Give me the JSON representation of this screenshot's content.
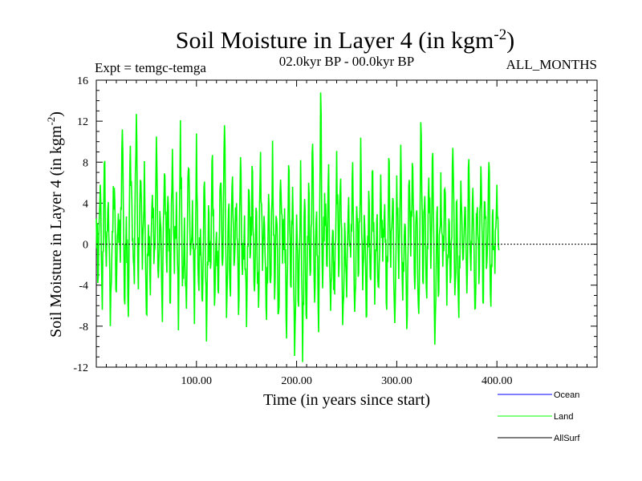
{
  "chart_data": {
    "type": "line",
    "title": "Soil Moisture in Layer 4 (in kgm",
    "title_superscript": "-2",
    "title_suffix": ")",
    "subtitle_left": "Expt = temgc-temga",
    "subtitle_center": "02.0kyr BP - 00.0kyr BP",
    "subtitle_right": "ALL_MONTHS",
    "xlabel": "Time (in years since start)",
    "ylabel": "Soil Moisture in Layer 4 (in kgm",
    "ylabel_superscript": "-2",
    "ylabel_suffix": ")",
    "xlim": [
      0,
      500
    ],
    "ylim": [
      -12,
      16
    ],
    "xticks": [
      100,
      200,
      300,
      400
    ],
    "xtick_labels": [
      "100.00",
      "200.00",
      "300.00",
      "400.00"
    ],
    "yticks": [
      -12,
      -8,
      -4,
      0,
      4,
      8,
      12,
      16
    ],
    "ytick_labels": [
      "-12",
      "-8",
      "-4",
      "0",
      "4",
      "8",
      "12",
      "16"
    ],
    "reference_line": 0,
    "series": [
      {
        "name": "Land",
        "color": "#00ff00",
        "x_start": 0,
        "x_step": 2,
        "values": [
          2.5,
          -3.1,
          5.8,
          -6.4,
          7.9,
          -2.2,
          4.1,
          -8.0,
          1.3,
          5.5,
          -4.7,
          3.0,
          -1.8,
          11.2,
          -5.3,
          2.7,
          -7.1,
          9.6,
          0.4,
          -3.9,
          12.7,
          -4.4,
          6.2,
          -2.5,
          8.1,
          -6.8,
          1.9,
          -5.0,
          4.8,
          -0.7,
          10.5,
          -3.3,
          2.2,
          -7.6,
          6.9,
          -1.4,
          3.6,
          -5.8,
          9.3,
          -2.9,
          5.1,
          -8.4,
          12.1,
          -4.1,
          2.6,
          -6.3,
          7.4,
          -1.1,
          4.3,
          -7.8,
          10.8,
          -3.7,
          1.5,
          -5.6,
          6.1,
          -9.5,
          3.8,
          -2.4,
          8.7,
          -6.0,
          1.2,
          -4.8,
          5.9,
          -2.1,
          11.6,
          -7.2,
          3.4,
          -5.1,
          6.6,
          -1.6,
          4.0,
          -6.9,
          8.5,
          -3.0,
          2.8,
          -8.1,
          5.3,
          -0.9,
          7.1,
          -4.6,
          3.1,
          -6.2,
          9.0,
          -2.6,
          1.7,
          -7.4,
          4.9,
          -3.8,
          10.1,
          -5.4,
          2.4,
          -6.7,
          6.3,
          -1.9,
          3.5,
          -9.2,
          7.7,
          -4.0,
          5.6,
          -10.9,
          2.9,
          -6.1,
          8.2,
          -11.5,
          4.4,
          -7.3,
          6.0,
          -2.7,
          9.8,
          -5.7,
          3.2,
          -8.6,
          14.8,
          -4.3,
          5.0,
          -2.0,
          7.8,
          -6.5,
          1.4,
          -4.9,
          9.1,
          -3.2,
          6.4,
          -7.9,
          2.1,
          -5.2,
          4.6,
          -1.3,
          8.0,
          -6.6,
          3.7,
          -2.8,
          10.4,
          -4.5,
          1.8,
          -7.0,
          5.2,
          -3.5,
          7.2,
          -5.9,
          2.3,
          -4.2,
          6.8,
          -1.7,
          3.9,
          -6.4,
          8.4,
          -2.3,
          4.5,
          -7.7,
          6.7,
          -3.4,
          9.7,
          -5.5,
          2.0,
          -8.3,
          5.7,
          -1.2,
          7.5,
          -4.4,
          3.3,
          -6.8,
          11.9,
          -3.6,
          4.7,
          -5.3,
          6.5,
          -2.4,
          8.9,
          -9.8,
          3.0,
          -4.7,
          7.0,
          -2.2,
          5.4,
          -6.0,
          2.5,
          -3.1,
          9.4,
          -5.0,
          4.2,
          -7.2,
          6.2,
          -1.5,
          3.6,
          -4.8,
          8.3,
          -2.6,
          5.5,
          -6.3,
          2.8,
          -3.9,
          7.6,
          -5.6,
          4.1,
          -1.8,
          8.0,
          -6.1,
          3.4,
          -2.9,
          5.8,
          -0.6
        ]
      },
      {
        "name": "Ocean",
        "color": "#0000ff"
      },
      {
        "name": "AllSurf",
        "color": "#000000"
      }
    ]
  }
}
